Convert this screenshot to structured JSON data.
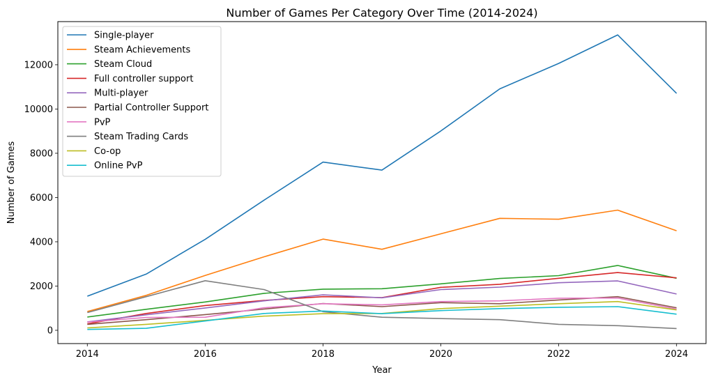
{
  "chart_data": {
    "type": "line",
    "title": "Number of Games Per Category Over Time (2014-2024)",
    "xlabel": "Year",
    "ylabel": "Number of Games",
    "xlim": [
      2013.5,
      2024.5
    ],
    "ylim": [
      -600,
      13950
    ],
    "xticks": [
      2014,
      2016,
      2018,
      2020,
      2022,
      2024
    ],
    "yticks": [
      0,
      2000,
      4000,
      6000,
      8000,
      10000,
      12000
    ],
    "grid": false,
    "legend": "upper-left",
    "x": [
      2014,
      2015,
      2016,
      2017,
      2018,
      2019,
      2020,
      2021,
      2022,
      2023,
      2024
    ],
    "series": [
      {
        "name": "Single-player",
        "color": "#1f77b4",
        "values": [
          1540,
          2540,
          4110,
          5880,
          7600,
          7240,
          9010,
          10910,
          12060,
          13350,
          10710
        ]
      },
      {
        "name": "Steam Achievements",
        "color": "#ff7f0e",
        "values": [
          850,
          1580,
          2480,
          3320,
          4120,
          3660,
          4360,
          5060,
          5020,
          5430,
          4500
        ]
      },
      {
        "name": "Steam Cloud",
        "color": "#2ca02c",
        "values": [
          600,
          950,
          1280,
          1670,
          1860,
          1880,
          2100,
          2340,
          2470,
          2930,
          2350
        ]
      },
      {
        "name": "Full controller support",
        "color": "#d62728",
        "values": [
          290,
          760,
          1120,
          1350,
          1520,
          1480,
          1940,
          2080,
          2350,
          2610,
          2370
        ]
      },
      {
        "name": "Multi-player",
        "color": "#9467bd",
        "values": [
          380,
          700,
          1010,
          1330,
          1600,
          1470,
          1840,
          1950,
          2150,
          2230,
          1640
        ]
      },
      {
        "name": "Partial Controller Support",
        "color": "#8c564b",
        "values": [
          270,
          480,
          710,
          960,
          1210,
          1070,
          1250,
          1200,
          1370,
          1520,
          1020
        ]
      },
      {
        "name": "PvP",
        "color": "#e377c2",
        "values": [
          370,
          580,
          590,
          1020,
          1200,
          1150,
          1300,
          1330,
          1450,
          1460,
          960
        ]
      },
      {
        "name": "Steam Trading Cards",
        "color": "#7f7f7f",
        "values": [
          800,
          1520,
          2240,
          1840,
          840,
          590,
          530,
          480,
          270,
          210,
          80
        ]
      },
      {
        "name": "Co-op",
        "color": "#bcbd22",
        "values": [
          110,
          270,
          450,
          640,
          750,
          760,
          980,
          1090,
          1200,
          1300,
          920
        ]
      },
      {
        "name": "Online PvP",
        "color": "#17becf",
        "values": [
          40,
          90,
          420,
          760,
          870,
          750,
          890,
          980,
          1040,
          1070,
          730
        ]
      }
    ]
  }
}
